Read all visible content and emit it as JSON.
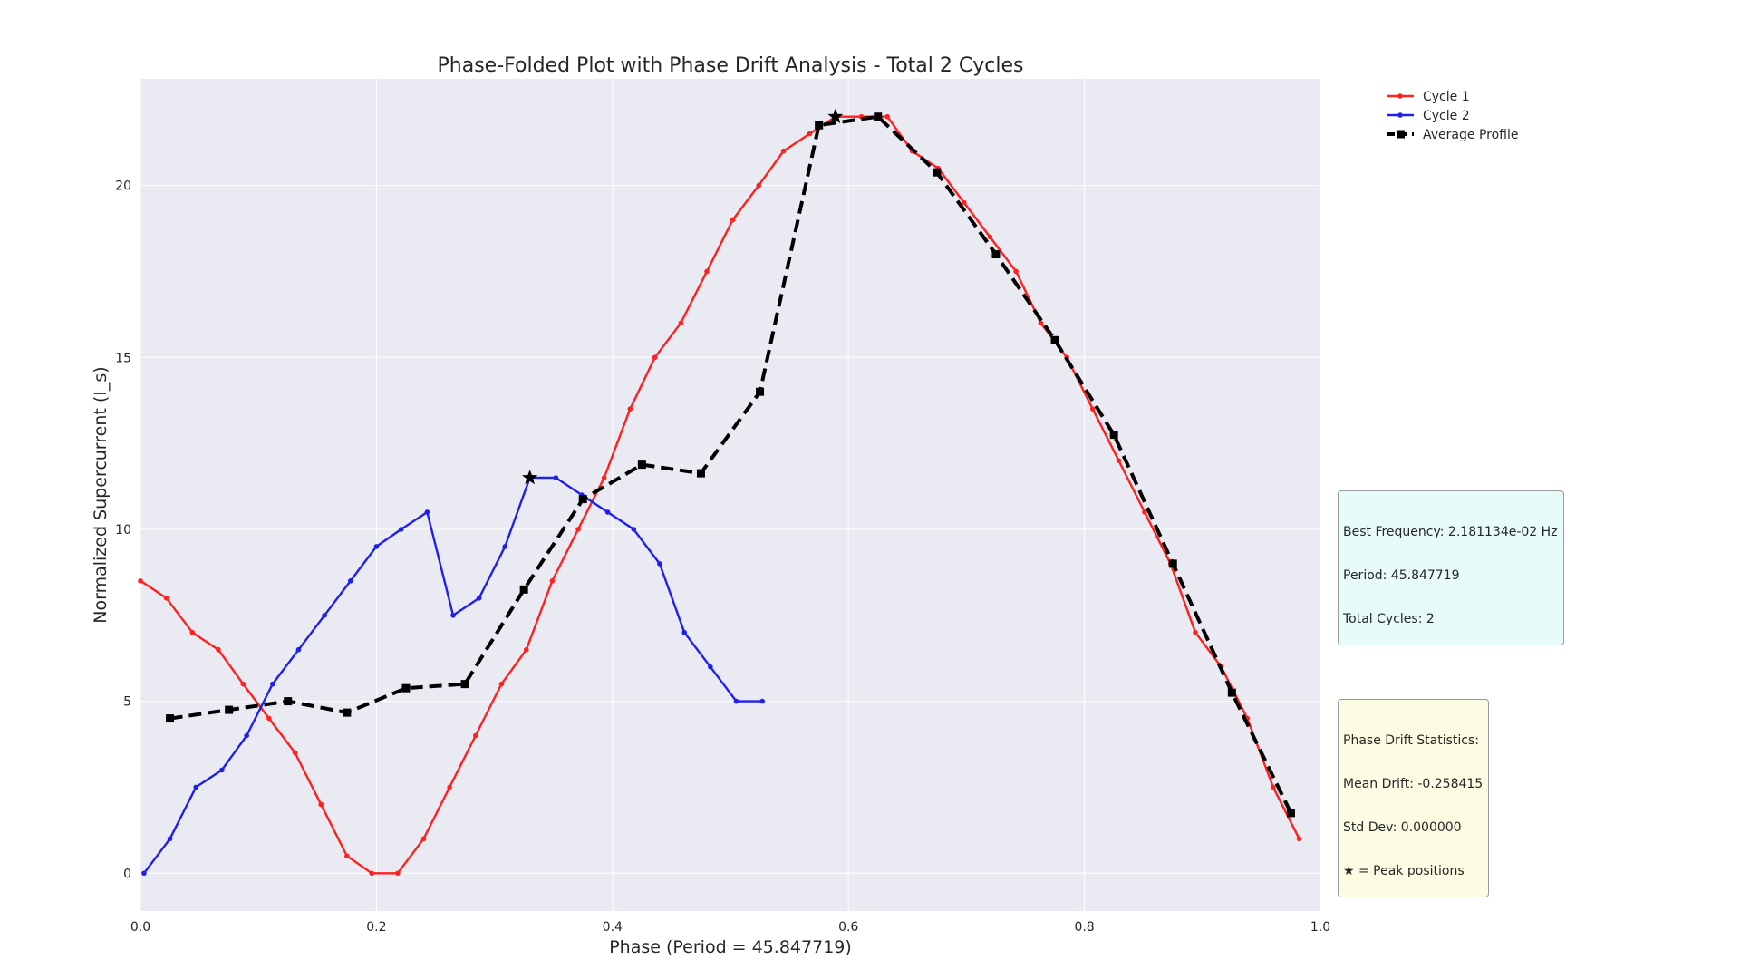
{
  "chart_data": {
    "type": "line",
    "title": "Phase-Folded Plot with Phase Drift Analysis - Total 2 Cycles",
    "xlabel": "Phase (Period = 45.847719)",
    "ylabel": "Normalized Supercurrent (I_s)",
    "xlim": [
      0.0,
      1.0
    ],
    "ylim": [
      -1.1,
      23.1
    ],
    "xticks": [
      0.0,
      0.2,
      0.4,
      0.6,
      0.8,
      1.0
    ],
    "xtick_labels": [
      "0.0",
      "0.2",
      "0.4",
      "0.6",
      "0.8",
      "1.0"
    ],
    "yticks": [
      0,
      5,
      10,
      15,
      20
    ],
    "ytick_labels": [
      "0",
      "5",
      "10",
      "15",
      "20"
    ],
    "grid": true,
    "legend_position": "top-right, outside plot",
    "series": [
      {
        "name": "Cycle 1",
        "color": "#ff2020",
        "marker": "dot",
        "x": [
          0.0,
          0.022,
          0.044,
          0.066,
          0.087,
          0.109,
          0.131,
          0.153,
          0.175,
          0.196,
          0.218,
          0.24,
          0.262,
          0.284,
          0.306,
          0.327,
          0.349,
          0.371,
          0.393,
          0.415,
          0.436,
          0.458,
          0.48,
          0.502,
          0.524,
          0.545,
          0.567,
          0.589,
          0.611,
          0.633,
          0.654,
          0.676,
          0.698,
          0.72,
          0.742,
          0.763,
          0.785,
          0.807,
          0.829,
          0.851,
          0.873,
          0.894,
          0.916,
          0.938,
          0.96,
          0.982
        ],
        "y": [
          8.5,
          8.0,
          7.0,
          6.5,
          5.5,
          4.5,
          3.5,
          2.0,
          0.5,
          0.0,
          0.0,
          1.0,
          2.5,
          4.0,
          5.5,
          6.5,
          8.5,
          10.0,
          11.5,
          13.5,
          15.0,
          16.0,
          17.5,
          19.0,
          20.0,
          21.0,
          21.5,
          22.0,
          22.0,
          22.0,
          21.0,
          20.5,
          19.5,
          18.5,
          17.5,
          16.0,
          15.0,
          13.5,
          12.0,
          10.5,
          9.0,
          7.0,
          6.0,
          4.5,
          2.5,
          1.0
        ]
      },
      {
        "name": "Cycle 2",
        "color": "#2020ee",
        "marker": "dot",
        "x": [
          0.003,
          0.025,
          0.047,
          0.069,
          0.09,
          0.112,
          0.134,
          0.156,
          0.178,
          0.2,
          0.221,
          0.243,
          0.265,
          0.287,
          0.309,
          0.33,
          0.352,
          0.374,
          0.396,
          0.418,
          0.44,
          0.461,
          0.483,
          0.505,
          0.527
        ],
        "y": [
          0.0,
          1.0,
          2.5,
          3.0,
          4.0,
          5.5,
          6.5,
          7.5,
          8.5,
          9.5,
          10.0,
          10.5,
          7.5,
          8.0,
          9.5,
          11.5,
          11.5,
          11.0,
          10.5,
          10.0,
          9.0,
          7.0,
          6.0,
          5.0,
          5.0
        ]
      },
      {
        "name": "Average Profile",
        "color": "#000000",
        "marker": "square",
        "dashed": true,
        "x": [
          0.025,
          0.075,
          0.125,
          0.175,
          0.225,
          0.275,
          0.325,
          0.375,
          0.425,
          0.475,
          0.525,
          0.575,
          0.625,
          0.675,
          0.725,
          0.775,
          0.825,
          0.875,
          0.925,
          0.975
        ],
        "y": [
          4.5,
          4.75,
          5.0,
          4.67,
          5.38,
          5.5,
          8.25,
          10.88,
          11.88,
          11.63,
          14.0,
          21.75,
          22.0,
          20.38,
          18.0,
          15.5,
          12.75,
          9.0,
          5.25,
          1.75
        ]
      }
    ],
    "peak_markers": [
      {
        "series": "Cycle 2",
        "x": 0.33,
        "y": 11.5
      },
      {
        "series": "Cycle 1",
        "x": 0.589,
        "y": 22.0
      }
    ]
  },
  "info_box": {
    "line1": "Best Frequency: 2.181134e-02 Hz",
    "line2": "Period: 45.847719",
    "line3": "Total Cycles: 2"
  },
  "drift_box": {
    "line1": "Phase Drift Statistics:",
    "line2": "Mean Drift: -0.258415",
    "line3": "Std Dev: 0.000000",
    "line4": "★ = Peak positions"
  },
  "colors": {
    "plot_background": "#eaeaf2",
    "grid": "#ffffff"
  }
}
